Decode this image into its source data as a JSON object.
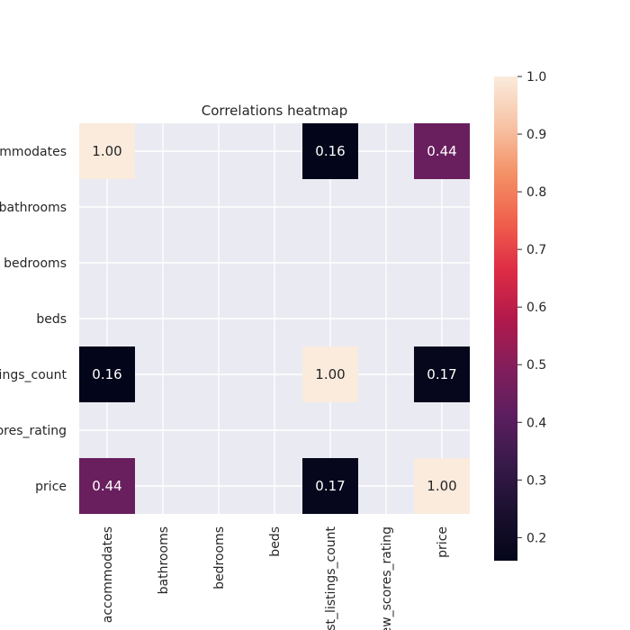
{
  "chart_data": {
    "type": "heatmap",
    "title": "Correlations heatmap",
    "row_labels": [
      "accommodates",
      "bathrooms",
      "bedrooms",
      "beds",
      "host_listings_count",
      "review_scores_rating",
      "price"
    ],
    "col_labels": [
      "accommodates",
      "bathrooms",
      "bedrooms",
      "beds",
      "host_listings_count",
      "review_scores_rating",
      "price"
    ],
    "values": [
      [
        1.0,
        null,
        null,
        null,
        0.16,
        null,
        0.44
      ],
      [
        null,
        null,
        null,
        null,
        null,
        null,
        null
      ],
      [
        null,
        null,
        null,
        null,
        null,
        null,
        null
      ],
      [
        null,
        null,
        null,
        null,
        null,
        null,
        null
      ],
      [
        0.16,
        null,
        null,
        null,
        1.0,
        null,
        0.17
      ],
      [
        null,
        null,
        null,
        null,
        null,
        null,
        null
      ],
      [
        0.44,
        null,
        null,
        null,
        0.17,
        null,
        1.0
      ]
    ],
    "colorbar": {
      "min": 0.16,
      "max": 1.0,
      "ticks": [
        "0.2",
        "0.3",
        "0.4",
        "0.5",
        "0.6",
        "0.7",
        "0.8",
        "0.9",
        "1.0"
      ],
      "colormap": "rocket"
    },
    "colors": {
      "plot_background": "#eaeaf2",
      "grid": "#ffffff",
      "text": "#262626"
    },
    "grid": true,
    "annotation_format": "0.00"
  }
}
